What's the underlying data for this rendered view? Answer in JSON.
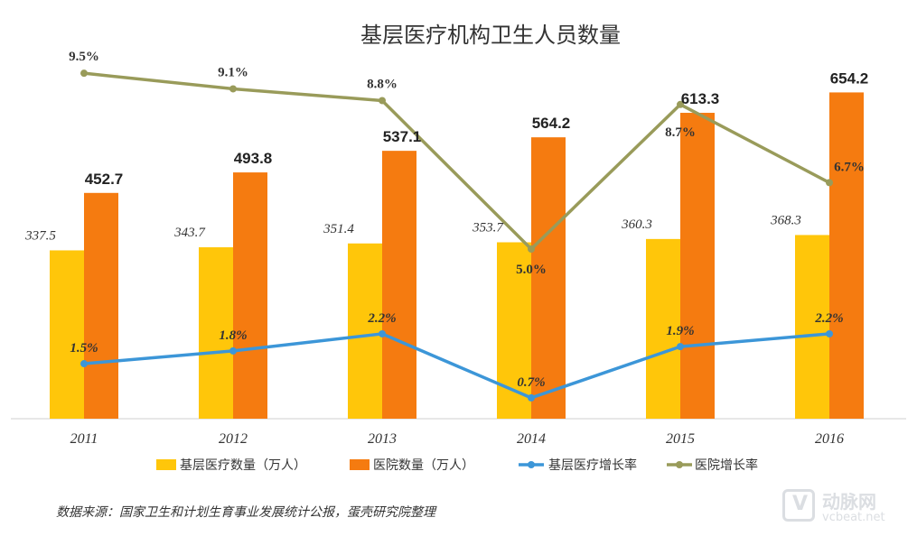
{
  "chart_data": {
    "type": "bar",
    "title": "基层医疗机构卫生人员数量",
    "categories": [
      "2011",
      "2012",
      "2013",
      "2014",
      "2015",
      "2016"
    ],
    "series": [
      {
        "name": "基层医疗数量（万人）",
        "kind": "bar",
        "color": "#FFC60A",
        "values": [
          337.5,
          343.7,
          351.4,
          353.7,
          360.3,
          368.3
        ],
        "labels": [
          "337.5",
          "343.7",
          "351.4",
          "353.7",
          "360.3",
          "368.3"
        ]
      },
      {
        "name": "医院数量（万人）",
        "kind": "bar",
        "color": "#F57B10",
        "values": [
          452.7,
          493.8,
          537.1,
          564.2,
          613.3,
          654.2
        ],
        "labels": [
          "452.7",
          "493.8",
          "537.1",
          "564.2",
          "613.3",
          "654.2"
        ]
      },
      {
        "name": "基层医疗增长率",
        "kind": "line",
        "color": "#3C96D8",
        "values": [
          1.5,
          1.8,
          2.2,
          0.7,
          1.9,
          2.2
        ],
        "labels": [
          "1.5%",
          "1.8%",
          "2.2%",
          "0.7%",
          "1.9%",
          "2.2%"
        ]
      },
      {
        "name": "医院增长率",
        "kind": "line",
        "color": "#999B5A",
        "values": [
          9.5,
          9.1,
          8.8,
          5.0,
          8.7,
          6.7
        ],
        "labels": [
          "9.5%",
          "9.1%",
          "8.8%",
          "5.0%",
          "8.7%",
          "6.7%"
        ]
      }
    ],
    "legend_position": "bottom",
    "grid": false
  },
  "source_note": "数据来源：国家卫生和计划生育事业发展统计公报，蛋壳研究院整理",
  "watermark": {
    "brand_cn": "动脉网",
    "brand_en": "vcbeat.net",
    "logo_letter": "V"
  }
}
